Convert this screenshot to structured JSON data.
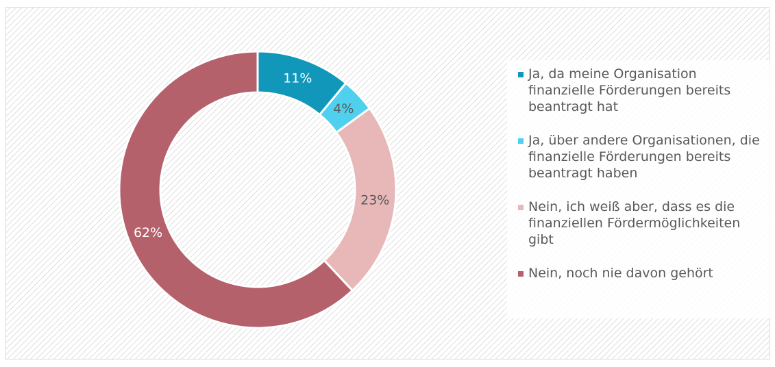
{
  "chart_data": {
    "type": "donut",
    "categories": [
      "Ja, da meine Organisation finanzielle Förderungen bereits beantragt hat",
      "Ja, über andere Organisationen, die finanzielle Förderungen bereits beantragt haben",
      "Nein, ich weiß aber, dass es die finanziellen Fördermöglichkeiten gibt",
      "Nein, noch nie davon gehört"
    ],
    "values": [
      11,
      4,
      23,
      62
    ],
    "value_labels": [
      "11%",
      "4%",
      "23%",
      "62%"
    ],
    "colors": [
      "#1197b9",
      "#4fd0ef",
      "#e8b8b8",
      "#b5616c"
    ]
  }
}
